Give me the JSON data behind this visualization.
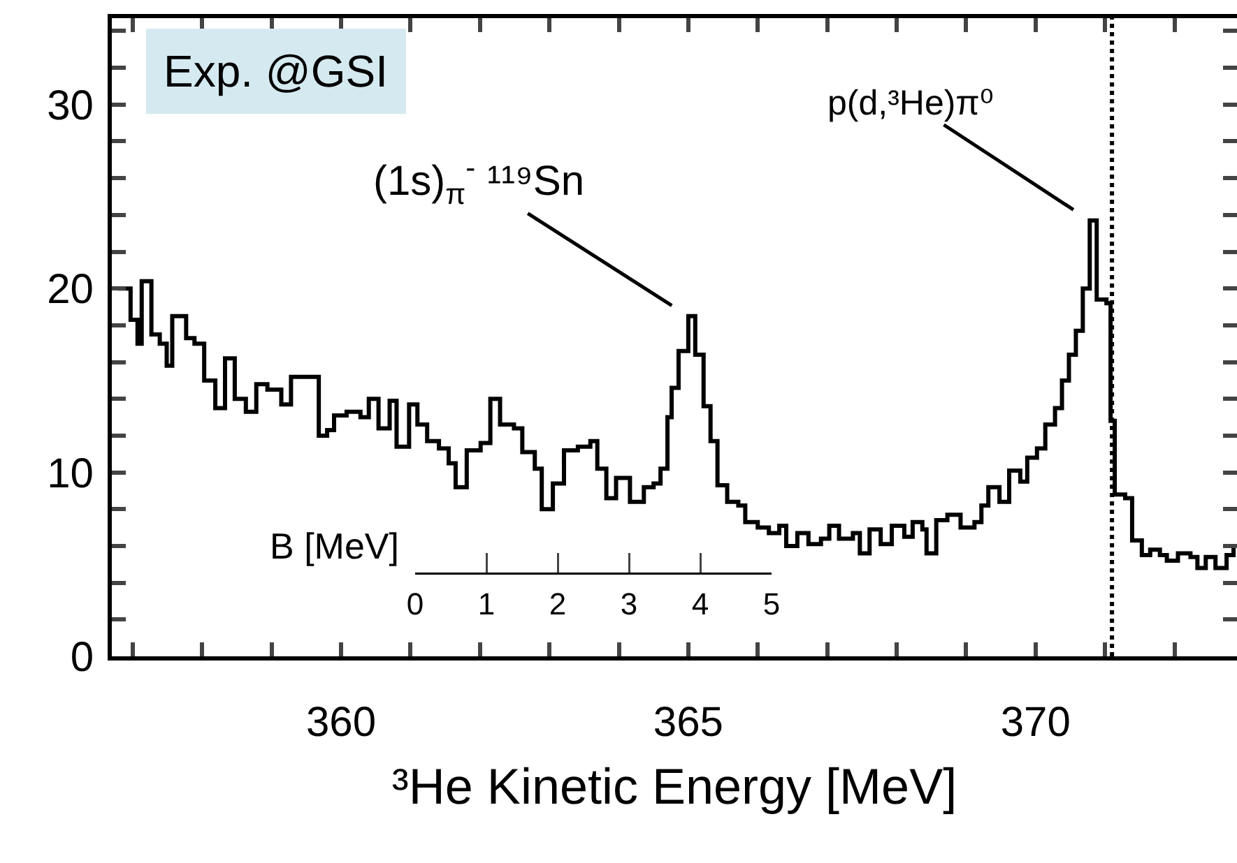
{
  "chart_data": {
    "type": "step",
    "xlabel": "³He Kinetic Energy [MeV]",
    "x2label": "B [MeV]",
    "xlim": [
      356.7,
      372.9
    ],
    "ylim": [
      0,
      34.7
    ],
    "x2lim": [
      0,
      5
    ],
    "x2ticks": [
      0,
      1,
      2,
      3,
      4,
      5
    ],
    "xticks": [
      {
        "value": 357,
        "label": null
      },
      {
        "value": 358,
        "label": null
      },
      {
        "value": 359,
        "label": null
      },
      360,
      {
        "value": 361,
        "label": null
      },
      {
        "value": 362,
        "label": null
      },
      {
        "value": 363,
        "label": null
      },
      {
        "value": 364,
        "label": null
      },
      365,
      {
        "value": 366,
        "label": null
      },
      {
        "value": 367,
        "label": null
      },
      {
        "value": 368,
        "label": null
      },
      {
        "value": 369,
        "label": null
      },
      370,
      {
        "value": 371,
        "label": null
      },
      {
        "value": 372,
        "label": null
      }
    ],
    "yticks": [
      0,
      {
        "value": 2,
        "label": null
      },
      {
        "value": 4,
        "label": null
      },
      {
        "value": 6,
        "label": null
      },
      {
        "value": 8,
        "label": null
      },
      10,
      {
        "value": 12,
        "label": null
      },
      {
        "value": 14,
        "label": null
      },
      {
        "value": 16,
        "label": null
      },
      {
        "value": 18,
        "label": null
      },
      20,
      {
        "value": 22,
        "label": null
      },
      {
        "value": 24,
        "label": null
      },
      {
        "value": 26,
        "label": null
      },
      {
        "value": 28,
        "label": null
      },
      30,
      {
        "value": 32,
        "label": null
      },
      {
        "value": 34,
        "label": null
      }
    ],
    "series": [
      {
        "color": "#000000",
        "x": [
          356.79,
          356.97,
          357.07,
          357.13,
          357.27,
          357.39,
          357.49,
          357.57,
          357.77,
          357.89,
          358.03,
          358.19,
          358.33,
          358.47,
          358.63,
          358.78,
          358.94,
          359.14,
          359.28,
          359.48,
          359.68,
          359.8,
          359.9,
          360.08,
          360.28,
          360.4,
          360.54,
          360.7,
          360.8,
          360.98,
          361.1,
          361.24,
          361.41,
          361.55,
          361.65,
          361.81,
          362.01,
          362.15,
          362.29,
          362.49,
          362.61,
          362.79,
          362.89,
          363.05,
          363.21,
          363.41,
          363.59,
          363.69,
          363.82,
          363.96,
          364.16,
          364.36,
          364.5,
          364.6,
          364.7,
          364.76,
          364.86,
          365.0,
          365.1,
          365.22,
          365.32,
          365.42,
          365.56,
          365.72,
          365.82,
          366.0,
          366.16,
          366.31,
          366.41,
          366.57,
          366.73,
          366.91,
          367.03,
          367.17,
          367.37,
          367.47,
          367.61,
          367.77,
          367.93,
          368.11,
          368.23,
          368.37,
          368.43,
          368.57,
          368.73,
          368.92,
          369.12,
          369.22,
          369.32,
          369.48,
          369.62,
          369.78,
          369.88,
          370.02,
          370.14,
          370.28,
          370.38,
          370.48,
          370.58,
          370.68,
          370.78,
          370.88,
          371.02,
          371.08,
          371.14,
          371.29,
          371.39,
          371.53,
          371.65,
          371.79,
          371.89,
          372.05,
          372.23,
          372.33,
          372.45,
          372.59,
          372.75,
          372.85
        ],
        "values": [
          20.0,
          18.3,
          17.0,
          20.4,
          17.5,
          17.0,
          15.8,
          18.5,
          17.3,
          17.0,
          15.0,
          13.5,
          16.2,
          14.0,
          13.3,
          14.8,
          14.5,
          13.7,
          15.2,
          15.2,
          12.0,
          12.3,
          13.1,
          13.3,
          13.0,
          14.0,
          12.4,
          13.9,
          11.4,
          13.7,
          12.6,
          11.7,
          11.3,
          10.5,
          9.2,
          11.2,
          11.6,
          14.0,
          12.6,
          12.4,
          11.1,
          10.2,
          8.0,
          9.4,
          11.2,
          11.4,
          11.7,
          10.2,
          8.6,
          9.7,
          8.4,
          9.2,
          9.4,
          10.2,
          13.0,
          14.6,
          16.6,
          18.5,
          16.4,
          13.6,
          11.7,
          9.3,
          8.4,
          8.2,
          7.3,
          7.0,
          6.7,
          7.1,
          6.0,
          6.7,
          6.1,
          6.4,
          7.1,
          6.4,
          6.7,
          5.6,
          6.9,
          6.1,
          7.1,
          6.5,
          7.3,
          6.9,
          5.6,
          7.4,
          7.7,
          7.0,
          7.3,
          8.2,
          9.2,
          8.4,
          10.1,
          9.5,
          10.8,
          11.3,
          12.6,
          13.5,
          15.0,
          16.4,
          17.7,
          20.0,
          23.7,
          19.4,
          19.2,
          12.8,
          8.8,
          8.6,
          6.3,
          5.5,
          5.8,
          5.5,
          5.2,
          5.6,
          5.4,
          4.8,
          5.4,
          4.8,
          5.5,
          5.9
        ]
      }
    ],
    "ref_lines": [
      {
        "axis": "x",
        "value": 371.1,
        "color": "#000000",
        "line_style": "dotted"
      }
    ],
    "annotations": [
      "Exp. @GSI",
      {
        "text": "(1s)$_{π}$$^{-}$ ¹¹⁹Sn",
        "x": 365.0,
        "y": 18.5
      },
      {
        "text": "p(d,³He)π⁰",
        "x": 370.78,
        "y": 23.7
      }
    ],
    "grid": false
  }
}
